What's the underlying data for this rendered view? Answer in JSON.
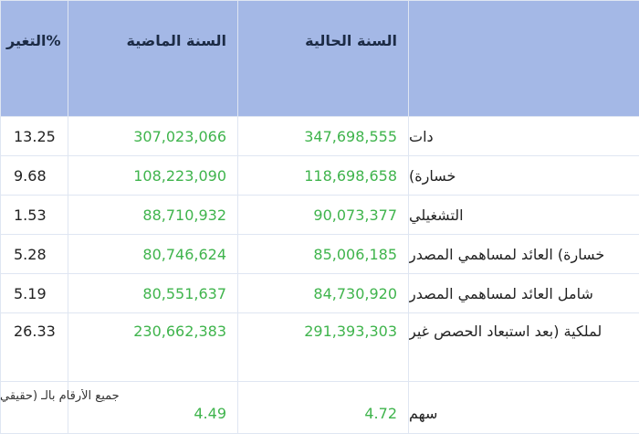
{
  "colors": {
    "header_bg": "#a4b8e6",
    "value_green": "#3fb44c",
    "grid": "#dfe6f2"
  },
  "table": {
    "headers": {
      "change": "التغير%",
      "last_year": "السنة الماضية",
      "current_year": "السنة الحالية",
      "item": ""
    },
    "rows": [
      {
        "change": "13.25",
        "last_year": "307,023,066",
        "current_year": "347,698,555",
        "label": "دات"
      },
      {
        "change": "9.68",
        "last_year": "108,223,090",
        "current_year": "118,698,658",
        "label": "خسارة)"
      },
      {
        "change": "1.53",
        "last_year": "88,710,932",
        "current_year": "90,073,377",
        "label": "التشغيلي"
      },
      {
        "change": "5.28",
        "last_year": "80,746,624",
        "current_year": "85,006,185",
        "label": "خسارة) العائد لمساهمي المصدر"
      },
      {
        "change": "5.19",
        "last_year": "80,551,637",
        "current_year": "84,730,920",
        "label": "شامل العائد لمساهمي المصدر"
      },
      {
        "change": "26.33",
        "last_year": "230,662,383",
        "current_year": "291,393,303",
        "label": "لملكية (بعد استبعاد الحصص غير"
      },
      {
        "change": "",
        "last_year": "4.49",
        "current_year": "4.72",
        "label": "سهم"
      }
    ]
  },
  "footnote": "جميع الأرقام بالـ (حقيقي"
}
